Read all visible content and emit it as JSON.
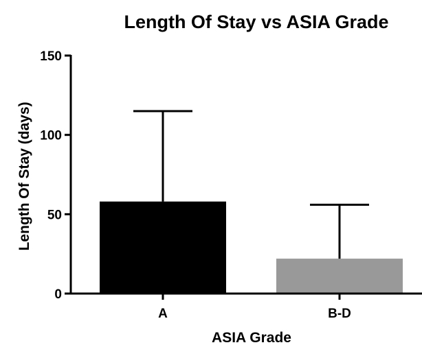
{
  "chart_data": {
    "type": "bar",
    "title": "Length Of Stay vs ASIA Grade",
    "xlabel": "ASIA Grade",
    "ylabel": "Length Of Stay (days)",
    "ylim": [
      0,
      150
    ],
    "yticks": [
      0,
      50,
      100,
      150
    ],
    "categories": [
      "A",
      "B-D"
    ],
    "values": [
      58,
      22
    ],
    "error_upper": [
      57,
      34
    ],
    "colors": [
      "#000000",
      "#999999"
    ],
    "grid": false,
    "legend": "none"
  }
}
